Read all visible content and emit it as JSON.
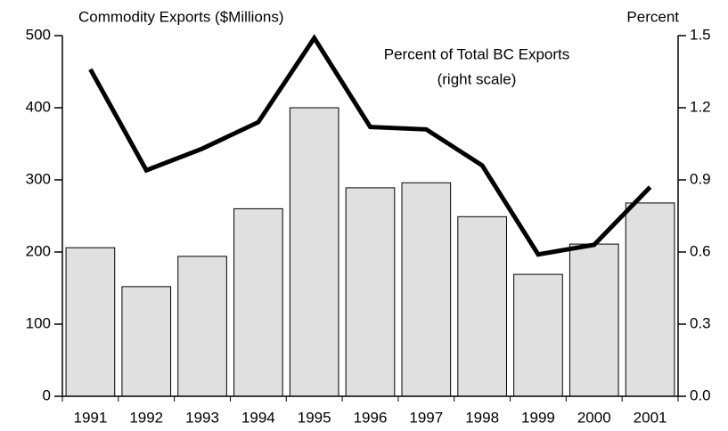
{
  "chart_data": {
    "type": "bar_line",
    "title": "Commodity Exports ($Millions)",
    "y2_title": "Percent",
    "annotations": [
      "Percent of Total BC Exports",
      "(right scale)"
    ],
    "categories": [
      "1991",
      "1992",
      "1993",
      "1994",
      "1995",
      "1996",
      "1997",
      "1998",
      "1999",
      "2000",
      "2001"
    ],
    "series": [
      {
        "type": "bar",
        "color": "#e0e0e0",
        "values": [
          206,
          152,
          194,
          260,
          400,
          289,
          296,
          249,
          169,
          211,
          268
        ]
      },
      {
        "type": "line",
        "axis": "y2",
        "color": "#000000",
        "values": [
          1.36,
          0.94,
          1.03,
          1.14,
          1.49,
          1.12,
          1.11,
          0.96,
          0.59,
          0.63,
          0.87
        ]
      }
    ],
    "ylim": [
      0,
      500
    ],
    "yticks": [
      0,
      100,
      200,
      300,
      400,
      500
    ],
    "y2lim": [
      0,
      1.5
    ],
    "y2ticks": [
      {
        "value": 0,
        "label": "0.0"
      },
      0.3,
      0.6,
      0.9,
      1.2,
      1.5
    ]
  }
}
